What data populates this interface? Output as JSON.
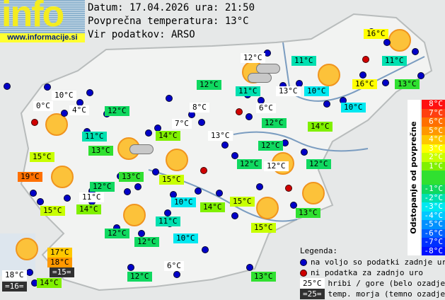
{
  "logo": {
    "text": "info",
    "url": "www.informacije.si"
  },
  "header": {
    "date_line": "Datum: 17.04.2026 ura: 21:50",
    "avg_line": "Povprečna temperatura: 13°C",
    "source_line": "Vir podatkov: ARSO"
  },
  "colors": {
    "station_ok": "#0000c8",
    "station_missing": "#d00000",
    "mountain_bg": "#ffffff",
    "sea_bg": "#303030"
  },
  "scale": {
    "title": "Odstopanje od povprečne temperature:",
    "rows": [
      {
        "label": "8°C",
        "color": "#ff1010"
      },
      {
        "label": "7°C",
        "color": "#ff4010"
      },
      {
        "label": "6°C",
        "color": "#ff7000"
      },
      {
        "label": "5°C",
        "color": "#ff9800"
      },
      {
        "label": "4°C",
        "color": "#ffc800"
      },
      {
        "label": "3°C",
        "color": "#ffff00"
      },
      {
        "label": "2°C",
        "color": "#c8ff00"
      },
      {
        "label": "1°C",
        "color": "#80f000"
      },
      {
        "label": "",
        "color": "#30e030"
      },
      {
        "label": "-1°C",
        "color": "#10d860"
      },
      {
        "label": "-2°C",
        "color": "#00e0b0"
      },
      {
        "label": "-3°C",
        "color": "#00e8f0"
      },
      {
        "label": "-4°C",
        "color": "#00c8ff"
      },
      {
        "label": "-5°C",
        "color": "#0090ff"
      },
      {
        "label": "-6°C",
        "color": "#0060ff"
      },
      {
        "label": "-7°C",
        "color": "#0030ff"
      },
      {
        "label": "-8°C",
        "color": "#0010ff"
      }
    ]
  },
  "legend": {
    "title": "Legenda:",
    "ok": "na voljo so podatki zadnje ure",
    "missing": "ni podatka za zadnjo uro",
    "mountain_sample": "25°C",
    "mountain": "hribi / gore (belo ozadje)",
    "sea_sample": "=25=",
    "sea": "temp. morja (temno ozadje)"
  },
  "stations": [
    {
      "text": "16°C",
      "kind": "land",
      "dev": 3
    },
    {
      "text": "12°C",
      "kind": "mountain",
      "dev": -1
    },
    {
      "text": "11°C",
      "kind": "land",
      "dev": -2
    },
    {
      "text": "11°C",
      "kind": "land",
      "dev": -2
    },
    {
      "text": "12°C",
      "kind": "land",
      "dev": -1
    },
    {
      "text": "11°C",
      "kind": "land",
      "dev": -2
    },
    {
      "text": "13°C",
      "kind": "mountain",
      "dev": 0
    },
    {
      "text": "10°C",
      "kind": "land",
      "dev": -3
    },
    {
      "text": "16°C",
      "kind": "land",
      "dev": 3
    },
    {
      "text": "13°C",
      "kind": "land",
      "dev": 0
    },
    {
      "text": "10°C",
      "kind": "mountain",
      "dev": -3
    },
    {
      "text": "0°C",
      "kind": "mountain",
      "dev": -13
    },
    {
      "text": "4°C",
      "kind": "mountain",
      "dev": -9
    },
    {
      "text": "12°C",
      "kind": "land",
      "dev": -1
    },
    {
      "text": "8°C",
      "kind": "mountain",
      "dev": -5
    },
    {
      "text": "6°C",
      "kind": "mountain",
      "dev": -7
    },
    {
      "text": "10°C",
      "kind": "land",
      "dev": -3
    },
    {
      "text": "12°C",
      "kind": "land",
      "dev": -1
    },
    {
      "text": "7°C",
      "kind": "mountain",
      "dev": -6
    },
    {
      "text": "11°C",
      "kind": "land",
      "dev": -2
    },
    {
      "text": "14°C",
      "kind": "land",
      "dev": 1
    },
    {
      "text": "13°C",
      "kind": "mountain",
      "dev": 0
    },
    {
      "text": "14°C",
      "kind": "land",
      "dev": 1
    },
    {
      "text": "12°C",
      "kind": "land",
      "dev": -1
    },
    {
      "text": "13°C",
      "kind": "land",
      "dev": 0
    },
    {
      "text": "15°C",
      "kind": "land",
      "dev": 2
    },
    {
      "text": "12°C",
      "kind": "land",
      "dev": -1
    },
    {
      "text": "12°C",
      "kind": "mountain",
      "dev": -1
    },
    {
      "text": "12°C",
      "kind": "land",
      "dev": -1
    },
    {
      "text": "19°C",
      "kind": "land",
      "dev": 6
    },
    {
      "text": "13°C",
      "kind": "land",
      "dev": 0
    },
    {
      "text": "15°C",
      "kind": "land",
      "dev": 2
    },
    {
      "text": "12°C",
      "kind": "land",
      "dev": -1
    },
    {
      "text": "11°C",
      "kind": "mountain",
      "dev": -2
    },
    {
      "text": "10°C",
      "kind": "land",
      "dev": -3
    },
    {
      "text": "15°C",
      "kind": "land",
      "dev": 2
    },
    {
      "text": "14°C",
      "kind": "land",
      "dev": 1
    },
    {
      "text": "15°C",
      "kind": "land",
      "dev": 2
    },
    {
      "text": "14°C",
      "kind": "land",
      "dev": 1
    },
    {
      "text": "13°C",
      "kind": "land",
      "dev": 0
    },
    {
      "text": "11°C",
      "kind": "land",
      "dev": -2
    },
    {
      "text": "15°C",
      "kind": "land",
      "dev": 2
    },
    {
      "text": "12°C",
      "kind": "land",
      "dev": -1
    },
    {
      "text": "12°C",
      "kind": "land",
      "dev": -1
    },
    {
      "text": "10°C",
      "kind": "land",
      "dev": -3
    },
    {
      "text": "17°C",
      "kind": "land",
      "dev": 4
    },
    {
      "text": "18°C",
      "kind": "land",
      "dev": 5
    },
    {
      "text": "=15=",
      "kind": "sea",
      "dev": 2
    },
    {
      "text": "18°C",
      "kind": "mountain",
      "dev": 5
    },
    {
      "text": "=16=",
      "kind": "sea",
      "dev": 3
    },
    {
      "text": "14°C",
      "kind": "land",
      "dev": 1
    },
    {
      "text": "6°C",
      "kind": "mountain",
      "dev": -7
    },
    {
      "text": "12°C",
      "kind": "land",
      "dev": -1
    },
    {
      "text": "13°C",
      "kind": "land",
      "dev": 0
    }
  ]
}
